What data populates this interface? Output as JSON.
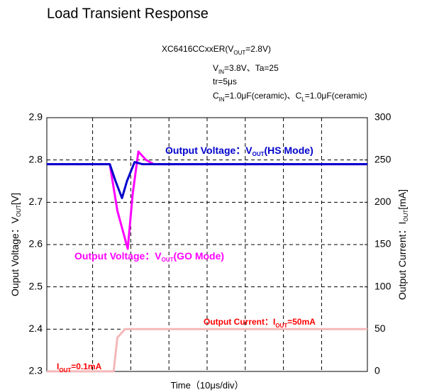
{
  "chart_data": {
    "type": "line",
    "title": "Load Transient Response",
    "subtitle_lines": [
      [
        "XC6416CCxxER(V",
        "OUT",
        "=2.8V)"
      ],
      [
        "V",
        "IN",
        "=3.8V、Ta=25"
      ],
      [
        "tr=5μs"
      ],
      [
        "C",
        "IN",
        "=1.0μF(ceramic)、C",
        "L",
        "=1.0μF(ceramic)"
      ]
    ],
    "x_label": [
      "Time（10μs/div）"
    ],
    "y_label": [
      "Ouput Voltage：V",
      "OUT",
      "[V]"
    ],
    "y2_label": [
      "Output Current：I",
      "OUT",
      "[mA]"
    ],
    "annotations": [
      {
        "text": [
          "Output Voltage：V",
          "OUT",
          "(HS Mode)"
        ],
        "color": "#0000cc"
      },
      {
        "text": [
          "Output Voltage：V",
          "OUT",
          "(GO Mode)"
        ],
        "color": "#ff00ff"
      },
      {
        "text": [
          "Output Current：I",
          "OUT",
          "=50mA"
        ],
        "color": "#ff0000"
      },
      {
        "text": [
          "I",
          "OUT",
          "=0.1mA"
        ],
        "color": "#ff0000"
      }
    ],
    "xlim": [
      0,
      84
    ],
    "xgrid": [
      12,
      22,
      32,
      42,
      52,
      62,
      72
    ],
    "ylim": [
      2.3,
      2.9
    ],
    "yticks": [
      2.3,
      2.4,
      2.5,
      2.6,
      2.7,
      2.8,
      2.9
    ],
    "y2lim": [
      0,
      300
    ],
    "y2ticks": [
      0,
      50,
      100,
      150,
      200,
      250,
      300
    ],
    "grid": true,
    "series": [
      {
        "name": "Output Current",
        "color": "#f4b8b8",
        "axis": "y2",
        "x": [
          0,
          17.5,
          18.5,
          20.5,
          84
        ],
        "values": [
          0.1,
          0.1,
          40,
          50,
          50
        ]
      },
      {
        "name": "GO Mode",
        "color": "#ff00ff",
        "x": [
          0,
          16.5,
          18.5,
          21.2,
          22.5,
          24,
          26,
          28,
          84
        ],
        "values": [
          2.79,
          2.79,
          2.68,
          2.59,
          2.72,
          2.82,
          2.8,
          2.79,
          2.79
        ]
      },
      {
        "name": "HS Mode",
        "color": "#0000cc",
        "x": [
          0,
          16.5,
          18,
          19.7,
          21,
          23,
          25,
          84
        ],
        "values": [
          2.79,
          2.79,
          2.75,
          2.71,
          2.75,
          2.795,
          2.79,
          2.79
        ]
      }
    ]
  }
}
